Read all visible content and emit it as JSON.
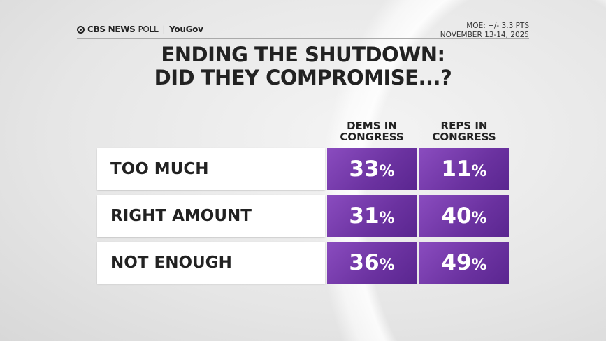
{
  "header": {
    "brand": "CBS NEWS",
    "brand_suffix": "POLL",
    "partner": "YouGov",
    "moe": "MOE: +/- 3.3 PTS",
    "dates": "NOVEMBER 13-14, 2025"
  },
  "title_line1": "ENDING THE SHUTDOWN:",
  "title_line2": "DID THEY COMPROMISE...?",
  "colors": {
    "cell": "#6b32a0",
    "label_bg": "#ffffff"
  },
  "chart_data": {
    "type": "table",
    "title": "ENDING THE SHUTDOWN: DID THEY COMPROMISE...?",
    "columns": [
      "DEMS IN CONGRESS",
      "REPS IN CONGRESS"
    ],
    "rows": [
      {
        "label": "TOO MUCH",
        "values": [
          "33",
          "11"
        ]
      },
      {
        "label": "RIGHT AMOUNT",
        "values": [
          "31",
          "40"
        ]
      },
      {
        "label": "NOT ENOUGH",
        "values": [
          "36",
          "49"
        ]
      }
    ],
    "unit": "%"
  }
}
